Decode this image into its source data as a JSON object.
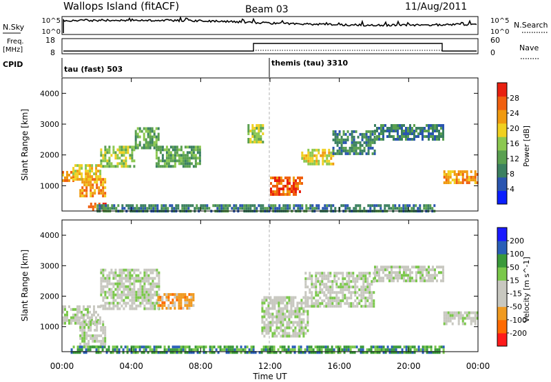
{
  "header": {
    "station": "Wallops Island (fitACF)",
    "beam": "Beam 03",
    "date": "11/Aug/2011"
  },
  "strip_panels": {
    "nsky": {
      "label": "N.Sky",
      "right_label": "N.Search",
      "left_ticks": [
        "10^5",
        "10^0"
      ],
      "right_ticks": [
        "10^5",
        "10^0"
      ]
    },
    "freq": {
      "label_line1": "Freq.",
      "label_line2": "[MHz]",
      "right_label": "Nave",
      "left_ticks": [
        "18",
        "8"
      ],
      "right_ticks": [
        "60",
        "0"
      ]
    },
    "cpid": {
      "label": "CPID",
      "programs": [
        {
          "name": "tau (fast) 503",
          "start_hour": 0
        },
        {
          "name": "themis (tau) 3310",
          "start_hour": 12
        }
      ]
    }
  },
  "time_axis": {
    "label": "Time UT",
    "ticks": [
      "00:00",
      "04:00",
      "08:00",
      "12:00",
      "16:00",
      "20:00",
      "00:00"
    ]
  },
  "colors": {
    "power_scale": [
      "#0a1eff",
      "#2a55b0",
      "#3b8060",
      "#5aa050",
      "#8cc850",
      "#f0d020",
      "#f09a10",
      "#f06010",
      "#e82010"
    ],
    "velocity_scale": [
      "#ff1a1a",
      "#ff6a00",
      "#f09a20",
      "#c8c8c0",
      "#c8c8c0",
      "#7ac84a",
      "#3a9a3a",
      "#2a5fb8",
      "#1a1aff"
    ],
    "ground_scatter": "#c8c8c0"
  },
  "chart_data": [
    {
      "type": "heatmap",
      "name": "power",
      "ylabel": "Slant Range [km]",
      "yticks": [
        1000,
        2000,
        3000,
        4000
      ],
      "ylim": [
        180,
        4500
      ],
      "xlim_hours": [
        0,
        24
      ],
      "colorbar": {
        "label": "Power [dB]",
        "ticks": [
          "4",
          "8",
          "12",
          "16",
          "20",
          "24",
          "28"
        ],
        "range": [
          0,
          30
        ]
      },
      "echo_bands": [
        {
          "t0": 0.0,
          "t1": 0.6,
          "r0": 1180,
          "r1": 1480,
          "level": 6
        },
        {
          "t0": 0.6,
          "t1": 2.2,
          "r0": 1250,
          "r1": 1700,
          "level": 5
        },
        {
          "t0": 2.2,
          "t1": 4.2,
          "r0": 1600,
          "r1": 2300,
          "level": 4
        },
        {
          "t0": 4.2,
          "t1": 5.6,
          "r0": 2200,
          "r1": 2900,
          "level": 3
        },
        {
          "t0": 5.4,
          "t1": 8.0,
          "r0": 1600,
          "r1": 2300,
          "level": 3
        },
        {
          "t0": 1.0,
          "t1": 2.5,
          "r0": 700,
          "r1": 1250,
          "level": 6
        },
        {
          "t0": 1.5,
          "t1": 2.5,
          "r0": 200,
          "r1": 450,
          "level": 7
        },
        {
          "t0": 10.7,
          "t1": 11.6,
          "r0": 2400,
          "r1": 3000,
          "level": 4
        },
        {
          "t0": 12.0,
          "t1": 13.8,
          "r0": 700,
          "r1": 1300,
          "level": 7
        },
        {
          "t0": 13.8,
          "t1": 15.6,
          "r0": 1700,
          "r1": 2200,
          "level": 5
        },
        {
          "t0": 15.6,
          "t1": 18.0,
          "r0": 2000,
          "r1": 2800,
          "level": 2
        },
        {
          "t0": 18.0,
          "t1": 22.0,
          "r0": 2500,
          "r1": 3000,
          "level": 2
        },
        {
          "t0": 22.0,
          "t1": 24.0,
          "r0": 1100,
          "r1": 1500,
          "level": 6
        },
        {
          "t0": 2.0,
          "t1": 21.5,
          "r0": 180,
          "r1": 400,
          "level": 2
        }
      ]
    },
    {
      "type": "heatmap",
      "name": "velocity",
      "ylabel": "Slant Range [km]",
      "yticks": [
        1000,
        2000,
        3000,
        4000
      ],
      "ylim": [
        180,
        4500
      ],
      "xlim_hours": [
        0,
        24
      ],
      "colorbar": {
        "label": "Velocity [m s^-1]",
        "ticks": [
          "-200",
          "-100",
          "-50",
          "-15",
          "15",
          "50",
          "100",
          "200"
        ],
        "range": [
          -250,
          250
        ]
      },
      "echo_bands": [
        {
          "t0": 0.0,
          "t1": 2.2,
          "r0": 1150,
          "r1": 1700,
          "level": 4
        },
        {
          "t0": 2.2,
          "t1": 5.6,
          "r0": 1600,
          "r1": 2900,
          "level": 4
        },
        {
          "t0": 5.5,
          "t1": 7.6,
          "r0": 1600,
          "r1": 2100,
          "level": 2
        },
        {
          "t0": 1.0,
          "t1": 2.5,
          "r0": 300,
          "r1": 1200,
          "level": 4
        },
        {
          "t0": 11.5,
          "t1": 14.2,
          "r0": 700,
          "r1": 2000,
          "level": 4
        },
        {
          "t0": 14.0,
          "t1": 18.0,
          "r0": 1700,
          "r1": 2800,
          "level": 4
        },
        {
          "t0": 18.0,
          "t1": 22.0,
          "r0": 2500,
          "r1": 3000,
          "level": 4
        },
        {
          "t0": 22.0,
          "t1": 24.0,
          "r0": 1100,
          "r1": 1500,
          "level": 4
        },
        {
          "t0": 0.5,
          "t1": 22.0,
          "r0": 180,
          "r1": 380,
          "level": 6
        }
      ]
    }
  ]
}
